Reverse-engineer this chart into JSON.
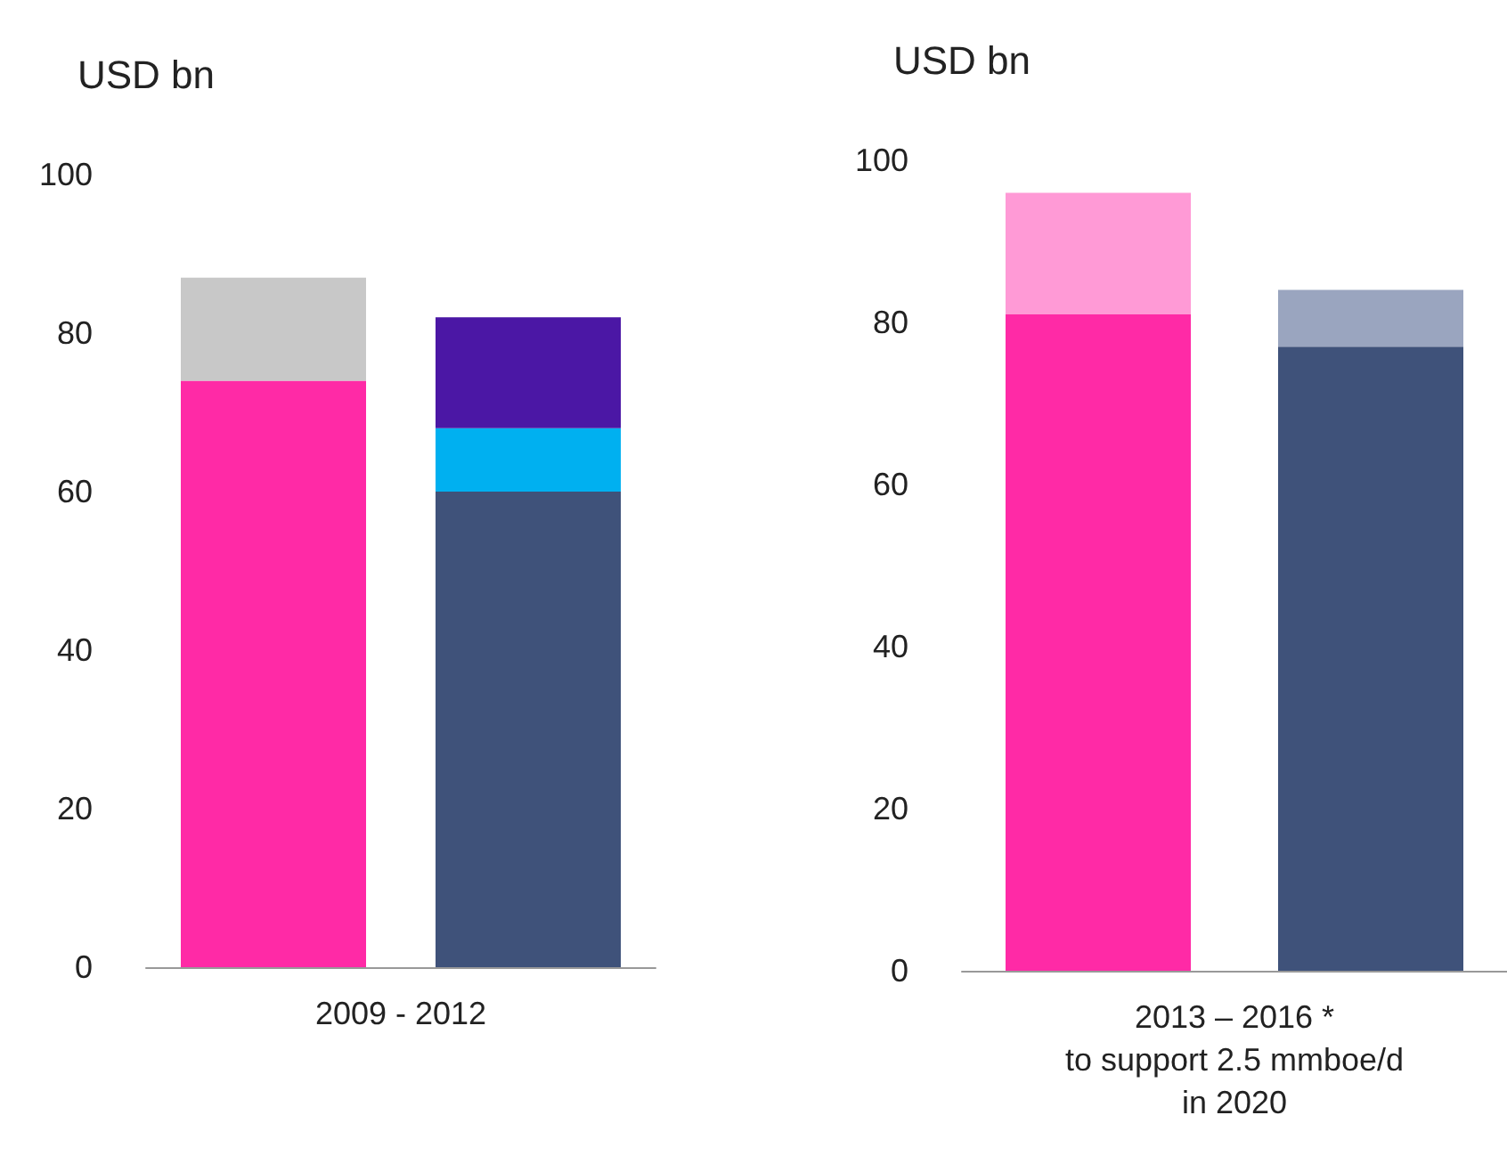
{
  "chart_data": [
    {
      "type": "bar",
      "ylabel": "USD bn",
      "xlabel": "2009 - 2012",
      "categories": [
        null,
        null
      ],
      "stacked": true,
      "ylim": [
        0,
        100
      ],
      "yticks": [
        0,
        20,
        40,
        60,
        80,
        100
      ],
      "grid": false,
      "series": [
        {
          "colors": [
            "#ff2aa6",
            "#3f527a"
          ],
          "values": [
            74,
            60
          ]
        },
        {
          "colors": [
            "#c8c8c8",
            "#00b0f0"
          ],
          "values": [
            13,
            8
          ]
        },
        {
          "colors": [
            "#4b17a5",
            "#4b17a5"
          ],
          "values": [
            null,
            14
          ]
        }
      ]
    },
    {
      "type": "bar",
      "ylabel": "USD bn",
      "xlabel": "2013 – 2016 *\nto support 2.5 mmboe/d\nin 2020",
      "categories": [
        null,
        null
      ],
      "stacked": true,
      "ylim": [
        0,
        100
      ],
      "yticks": [
        0,
        20,
        40,
        60,
        80,
        100
      ],
      "grid": false,
      "series": [
        {
          "colors": [
            "#ff2aa6",
            "#3f527a"
          ],
          "values": [
            81,
            77
          ]
        },
        {
          "colors": [
            "#ff9ad6",
            "#9aa5bf"
          ],
          "values": [
            15,
            7
          ]
        }
      ]
    }
  ]
}
